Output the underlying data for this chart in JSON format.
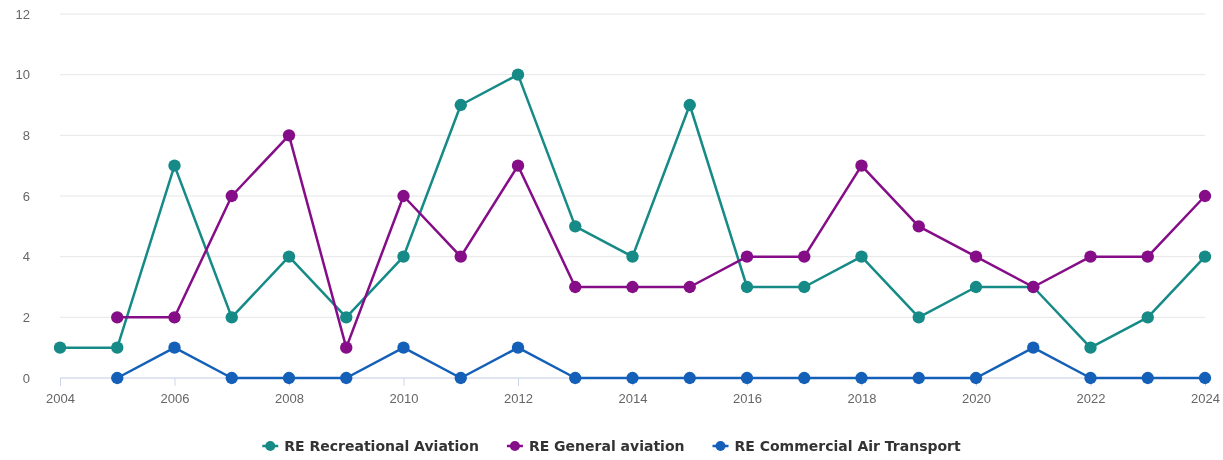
{
  "chart_data": {
    "type": "line",
    "x": [
      2004,
      2005,
      2006,
      2007,
      2008,
      2009,
      2010,
      2011,
      2012,
      2013,
      2014,
      2015,
      2016,
      2017,
      2018,
      2019,
      2020,
      2021,
      2022,
      2023,
      2024
    ],
    "series": [
      {
        "name": "RE Recreational Aviation",
        "color": "#168a87",
        "values": [
          1,
          1,
          7,
          2,
          4,
          2,
          4,
          9,
          10,
          5,
          4,
          9,
          3,
          3,
          4,
          2,
          3,
          3,
          1,
          2,
          4
        ]
      },
      {
        "name": "RE General aviation",
        "color": "#850d88",
        "values": [
          null,
          2,
          2,
          6,
          8,
          1,
          6,
          4,
          7,
          3,
          3,
          3,
          4,
          4,
          7,
          5,
          4,
          3,
          4,
          4,
          6
        ]
      },
      {
        "name": "RE Commercial Air Transport",
        "color": "#1460b8",
        "values": [
          null,
          0,
          1,
          0,
          0,
          0,
          1,
          0,
          1,
          0,
          0,
          0,
          0,
          0,
          0,
          0,
          0,
          1,
          0,
          0,
          0
        ]
      }
    ],
    "xlim": [
      2004,
      2024
    ],
    "xticks": [
      2004,
      2006,
      2008,
      2010,
      2012,
      2014,
      2016,
      2018,
      2020,
      2022,
      2024
    ],
    "ylim": [
      0,
      12
    ],
    "yticks": [
      0,
      2,
      4,
      6,
      8,
      10,
      12
    ],
    "grid": "y",
    "legend": "bottom",
    "marker": "circle",
    "line_style": "solid"
  }
}
